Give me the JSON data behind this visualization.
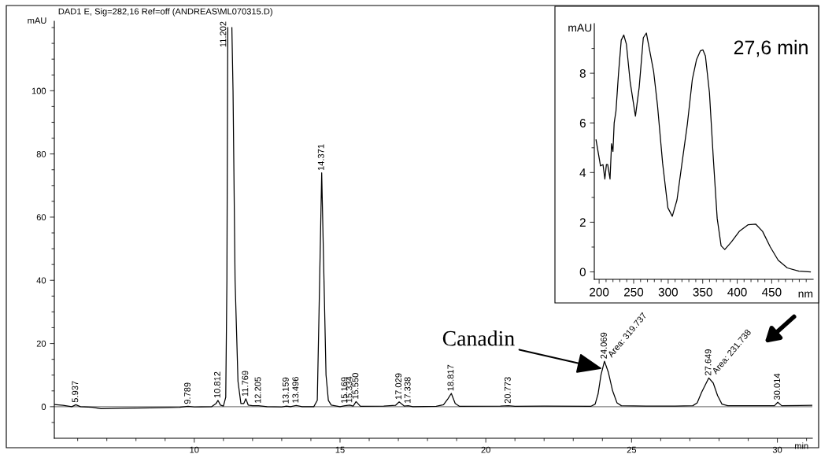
{
  "chart_data": [
    {
      "type": "line",
      "title": "DAD1 E, Sig=282,16 Ref=off (ANDREAS\\ML070315.D)",
      "ylabel": "mAU",
      "xlabel": "min",
      "x": [
        5.2,
        5.5,
        5.8,
        5.937,
        6.1,
        6.5,
        6.8,
        7.5,
        8.5,
        9.5,
        9.789,
        10.0,
        10.6,
        10.75,
        10.812,
        10.9,
        11.0,
        11.08,
        11.12,
        11.15,
        11.2,
        11.29,
        11.33,
        11.4,
        11.5,
        11.6,
        11.7,
        11.769,
        11.85,
        12.0,
        12.205,
        12.5,
        13.0,
        13.159,
        13.3,
        13.496,
        13.7,
        14.1,
        14.22,
        14.28,
        14.371,
        14.45,
        14.52,
        14.6,
        14.7,
        15.0,
        15.169,
        15.334,
        15.45,
        15.55,
        15.7,
        16.5,
        16.9,
        17.029,
        17.2,
        17.338,
        17.5,
        18.3,
        18.55,
        18.7,
        18.817,
        18.95,
        19.1,
        20.5,
        20.773,
        21.0,
        22.0,
        23.6,
        23.75,
        23.85,
        23.95,
        24.069,
        24.2,
        24.35,
        24.5,
        24.65,
        25.5,
        26.5,
        27.1,
        27.25,
        27.4,
        27.649,
        27.8,
        27.95,
        28.1,
        28.3,
        29.9,
        30.014,
        30.15,
        31.2
      ],
      "series": [
        {
          "color": "#000000",
          "values": [
            0.7,
            0.4,
            0.0,
            0.6,
            0.0,
            -0.2,
            -0.6,
            -0.5,
            -0.4,
            -0.2,
            0.1,
            -0.1,
            0.0,
            1.0,
            2.0,
            0.5,
            0.2,
            3,
            40,
            120,
            null,
            120,
            100,
            40,
            8,
            1.0,
            1.0,
            2.5,
            0.5,
            0.3,
            0.3,
            0.0,
            -0.1,
            0.2,
            0.0,
            0.4,
            0.0,
            0.0,
            2,
            30,
            74,
            40,
            10,
            2,
            0.5,
            0.0,
            0.3,
            0.5,
            0.2,
            1.6,
            0.1,
            0.2,
            0.4,
            1.5,
            0.2,
            0.3,
            0.0,
            0.1,
            0.6,
            2.5,
            4.2,
            1.0,
            0.1,
            0.2,
            0.3,
            0.1,
            0.2,
            0.1,
            0.8,
            4,
            10,
            14.4,
            11,
            5,
            1.2,
            0.3,
            0.2,
            0.2,
            0.3,
            1.2,
            4.5,
            9.1,
            7.5,
            3.5,
            0.8,
            0.3,
            0.3,
            1.4,
            0.3,
            0.4
          ]
        }
      ],
      "xlim": [
        5.2,
        31.2
      ],
      "xticks": [
        10,
        15,
        20,
        25,
        30,
        {
          "value": 6,
          "label": null
        },
        {
          "value": 7,
          "label": null
        },
        {
          "value": 8,
          "label": null
        },
        {
          "value": 9,
          "label": null
        },
        {
          "value": 11,
          "label": null
        },
        {
          "value": 12,
          "label": null
        },
        {
          "value": 13,
          "label": null
        },
        {
          "value": 14,
          "label": null
        },
        {
          "value": 16,
          "label": null
        },
        {
          "value": 17,
          "label": null
        },
        {
          "value": 18,
          "label": null
        },
        {
          "value": 19,
          "label": null
        },
        {
          "value": 21,
          "label": null
        },
        {
          "value": 22,
          "label": null
        },
        {
          "value": 23,
          "label": null
        },
        {
          "value": 24,
          "label": null
        },
        {
          "value": 26,
          "label": null
        },
        {
          "value": 27,
          "label": null
        },
        {
          "value": 28,
          "label": null
        },
        {
          "value": 29,
          "label": null
        },
        {
          "value": 31,
          "label": null
        }
      ],
      "ylim": [
        -10,
        122
      ],
      "yticks": [
        0,
        20,
        40,
        60,
        80,
        100,
        {
          "value": -5,
          "label": null
        },
        {
          "value": 5,
          "label": null
        },
        {
          "value": 10,
          "label": null
        },
        {
          "value": 15,
          "label": null
        },
        {
          "value": 25,
          "label": null
        },
        {
          "value": 30,
          "label": null
        },
        {
          "value": 35,
          "label": null
        },
        {
          "value": 45,
          "label": null
        },
        {
          "value": 50,
          "label": null
        },
        {
          "value": 55,
          "label": null
        },
        {
          "value": 65,
          "label": null
        },
        {
          "value": 70,
          "label": null
        },
        {
          "value": 75,
          "label": null
        },
        {
          "value": 85,
          "label": null
        },
        {
          "value": 90,
          "label": null
        },
        {
          "value": 95,
          "label": null
        },
        {
          "value": 105,
          "label": null
        },
        {
          "value": 110,
          "label": null
        },
        {
          "value": 115,
          "label": null
        },
        {
          "value": 120,
          "label": null
        }
      ],
      "ref_lines": [
        {
          "axis": "y",
          "value": 0,
          "color": "#808080"
        }
      ],
      "annotations": [
        {
          "text": "5.937",
          "x": 5.937,
          "y": 0.6
        },
        {
          "text": "9.789",
          "x": 9.789,
          "y": 0.1
        },
        {
          "text": "10.812",
          "x": 10.812,
          "y": 2.0
        },
        {
          "text": "11.202",
          "x": 11.202
        },
        {
          "text": "11.769",
          "x": 11.769,
          "y": 2.5
        },
        {
          "text": "12.205",
          "x": 12.205,
          "y": 0.3
        },
        {
          "text": "13.159",
          "x": 13.159,
          "y": 0.2
        },
        {
          "text": "13.496",
          "x": 13.496,
          "y": 0.4
        },
        {
          "text": "14.371",
          "x": 14.371,
          "y": 74
        },
        {
          "text": "15.169",
          "x": 15.169,
          "y": 0.3
        },
        {
          "text": "15.334",
          "x": 15.334,
          "y": 0.5
        },
        {
          "text": "15.550",
          "x": 15.55,
          "y": 1.6
        },
        {
          "text": "17.029",
          "x": 17.029,
          "y": 1.5
        },
        {
          "text": "17.338",
          "x": 17.338,
          "y": 0.3
        },
        {
          "text": "18.817",
          "x": 18.817,
          "y": 4.2
        },
        {
          "text": "20.773",
          "x": 20.773,
          "y": 0.3
        },
        {
          "text": "24.069",
          "x": 24.069,
          "y": 14.4
        },
        {
          "text": "27.649",
          "x": 27.649,
          "y": 9.1
        },
        {
          "text": "30.014",
          "x": 30.014,
          "y": 1.4
        },
        {
          "text": "Area: 319.737",
          "x": 24.069,
          "y": 14.4
        },
        {
          "text": "Area: 231.738",
          "x": 27.649,
          "y": 9.1
        },
        {
          "text": "Canadin",
          "x": 24.0,
          "y": 12
        }
      ]
    },
    {
      "type": "line",
      "title": "27,6 min",
      "xlabel": "nm",
      "ylabel": "mAU",
      "x": [
        195.5,
        202,
        205.6,
        208.3,
        210.5,
        212.4,
        215.8,
        218,
        220,
        221.8,
        224.4,
        228,
        232,
        235.7,
        239.5,
        245,
        252.6,
        258,
        264,
        268.4,
        273.3,
        279,
        284.6,
        292,
        299.6,
        306,
        312.8,
        320,
        327.8,
        335,
        341,
        346.6,
        350.4,
        354,
        359.8,
        365.4,
        371,
        376.7,
        382,
        391.7,
        403,
        416,
        427,
        436.8,
        448,
        459.4,
        472.6,
        489.5,
        506
      ],
      "series": [
        {
          "color": "#000000",
          "values": [
            5.32,
            4.27,
            4.32,
            3.74,
            4.32,
            4.32,
            3.74,
            5.16,
            4.85,
            6.0,
            6.48,
            7.96,
            9.33,
            9.54,
            9.17,
            7.64,
            6.27,
            7.43,
            9.43,
            9.62,
            8.9,
            8.06,
            6.69,
            4.37,
            2.58,
            2.24,
            2.9,
            4.37,
            5.95,
            7.75,
            8.54,
            8.9,
            8.94,
            8.69,
            7.22,
            4.58,
            2.16,
            1.05,
            0.9,
            1.21,
            1.63,
            1.9,
            1.92,
            1.63,
            1.0,
            0.47,
            0.16,
            0.03,
            0.0
          ]
        }
      ],
      "xlim": [
        193,
        510
      ],
      "xticks": [
        200,
        250,
        300,
        350,
        400,
        450,
        {
          "value": 210,
          "label": null
        },
        {
          "value": 220,
          "label": null
        },
        {
          "value": 230,
          "label": null
        },
        {
          "value": 240,
          "label": null
        },
        {
          "value": 260,
          "label": null
        },
        {
          "value": 270,
          "label": null
        },
        {
          "value": 280,
          "label": null
        },
        {
          "value": 290,
          "label": null
        },
        {
          "value": 310,
          "label": null
        },
        {
          "value": 320,
          "label": null
        },
        {
          "value": 330,
          "label": null
        },
        {
          "value": 340,
          "label": null
        },
        {
          "value": 360,
          "label": null
        },
        {
          "value": 370,
          "label": null
        },
        {
          "value": 380,
          "label": null
        },
        {
          "value": 390,
          "label": null
        },
        {
          "value": 410,
          "label": null
        },
        {
          "value": 420,
          "label": null
        },
        {
          "value": 430,
          "label": null
        },
        {
          "value": 440,
          "label": null
        },
        {
          "value": 460,
          "label": null
        },
        {
          "value": 470,
          "label": null
        },
        {
          "value": 480,
          "label": null
        },
        {
          "value": 490,
          "label": null
        },
        {
          "value": 500,
          "label": null
        }
      ],
      "ylim": [
        -0.3,
        10
      ],
      "yticks": [
        0,
        2,
        4,
        6,
        8,
        {
          "value": 1,
          "label": null
        },
        {
          "value": 3,
          "label": null
        },
        {
          "value": 5,
          "label": null
        },
        {
          "value": 7,
          "label": null
        },
        {
          "value": 9,
          "label": null
        }
      ]
    }
  ]
}
